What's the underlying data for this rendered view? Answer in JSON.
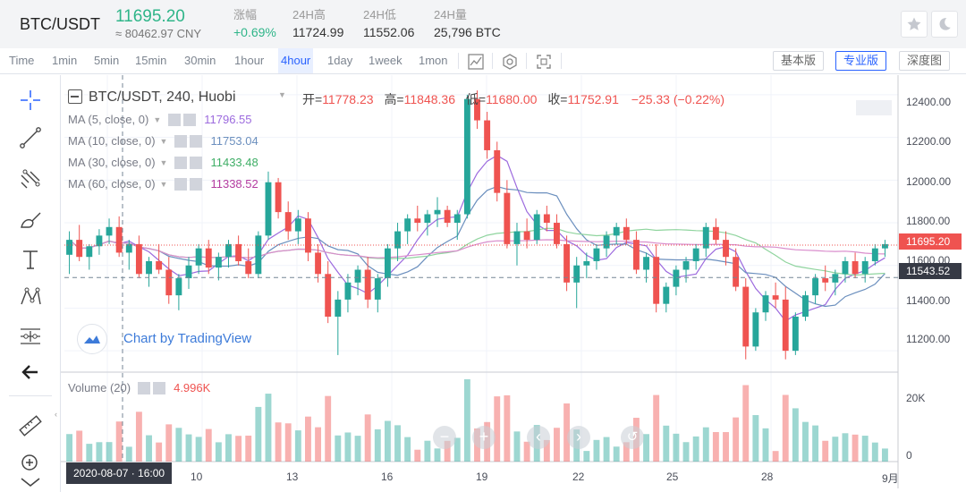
{
  "header": {
    "pair": "BTC/USDT",
    "last_price": "11695.20",
    "cny_price": "≈ 80462.97 CNY",
    "stats": [
      {
        "label": "涨幅",
        "value": "+0.69%"
      },
      {
        "label": "24H高",
        "value": "11724.99"
      },
      {
        "label": "24H低",
        "value": "11552.06"
      },
      {
        "label": "24H量",
        "value": "25,796 BTC"
      }
    ]
  },
  "toolbar": {
    "timeframes": [
      "Time",
      "1min",
      "5min",
      "15min",
      "30min",
      "1hour",
      "4hour",
      "1day",
      "1week",
      "1mon"
    ],
    "active_timeframe": "4hour",
    "views": [
      "基本版",
      "专业版",
      "深度图"
    ],
    "active_view": "专业版"
  },
  "left_tools": [
    "crosshair-icon",
    "trend-line-icon",
    "pitchfork-icon",
    "brush-icon",
    "text-icon",
    "pattern-icon",
    "measure-icon",
    "back-arrow-icon",
    "ruler-icon",
    "zoom-in-icon"
  ],
  "legend": {
    "symbol": "BTC/USDT, 240, Huobi",
    "open_label": "开=",
    "open": "11778.23",
    "high_label": "高=",
    "high": "11848.36",
    "low_label": "低=",
    "low": "11680.00",
    "close_label": "收=",
    "close": "11752.91",
    "change": "−25.33 (−0.22%)",
    "ma": [
      {
        "label": "MA (5, close, 0)",
        "value": "11796.55",
        "color": "#9c6ade"
      },
      {
        "label": "MA (10, close, 0)",
        "value": "11753.04",
        "color": "#6b8fbe"
      },
      {
        "label": "MA (30, close, 0)",
        "value": "11433.48",
        "color": "#3fae66"
      },
      {
        "label": "MA (60, close, 0)",
        "value": "11338.52",
        "color": "#b43ca0"
      }
    ],
    "volume_label": "Volume (20)",
    "volume_value": "4.996K"
  },
  "watermark": "Chart by TradingView",
  "price_axis": [
    "12400.00",
    "12200.00",
    "12000.00",
    "11800.00",
    "11600.00",
    "11400.00",
    "11200.00"
  ],
  "volume_axis": [
    "20K",
    "0"
  ],
  "last_price_tag": "11695.20",
  "crosshair_price_tag": "11543.52",
  "crosshair_time": "2020-08-07 · 16:00",
  "time_axis": [
    "10",
    "13",
    "16",
    "19",
    "22",
    "25",
    "28",
    "9月"
  ],
  "colors": {
    "up": "#26a69a",
    "down": "#ef5350",
    "accent": "#2962ff"
  },
  "chart_data": {
    "type": "candlestick",
    "symbol": "BTC/USDT, 240, Huobi",
    "ylim": [
      11100,
      12450
    ],
    "visible_price_levels": [
      12400,
      12200,
      12000,
      11800,
      11600,
      11400,
      11200
    ],
    "last_price": 11695.2,
    "crosshair_price": 11543.52,
    "crosshair_time": "2020-08-07 16:00",
    "ohlc_sample": [
      [
        11650,
        11760,
        11560,
        11720
      ],
      [
        11720,
        11790,
        11620,
        11640
      ],
      [
        11640,
        11700,
        11580,
        11690
      ],
      [
        11690,
        11770,
        11650,
        11740
      ],
      [
        11740,
        11820,
        11700,
        11780
      ],
      [
        11780,
        11830,
        11640,
        11660
      ],
      [
        11660,
        11720,
        11580,
        11700
      ],
      [
        11700,
        11740,
        11540,
        11560
      ],
      [
        11560,
        11640,
        11500,
        11620
      ],
      [
        11620,
        11700,
        11560,
        11580
      ],
      [
        11580,
        11640,
        11420,
        11460
      ],
      [
        11460,
        11560,
        11390,
        11540
      ],
      [
        11540,
        11640,
        11490,
        11600
      ],
      [
        11600,
        11700,
        11560,
        11680
      ],
      [
        11680,
        11720,
        11560,
        11590
      ],
      [
        11590,
        11660,
        11530,
        11640
      ],
      [
        11640,
        11720,
        11590,
        11700
      ],
      [
        11700,
        11740,
        11600,
        11620
      ],
      [
        11620,
        11680,
        11540,
        11560
      ],
      [
        11560,
        11760,
        11540,
        11740
      ],
      [
        11740,
        12040,
        11720,
        11990
      ],
      [
        11990,
        12010,
        11820,
        11850
      ],
      [
        11850,
        11900,
        11720,
        11760
      ],
      [
        11760,
        11860,
        11700,
        11820
      ],
      [
        11820,
        11850,
        11620,
        11660
      ],
      [
        11660,
        11700,
        11520,
        11560
      ],
      [
        11560,
        11620,
        11330,
        11360
      ],
      [
        11360,
        11480,
        11180,
        11440
      ],
      [
        11440,
        11560,
        11380,
        11520
      ],
      [
        11520,
        11600,
        11460,
        11580
      ],
      [
        11580,
        11640,
        11400,
        11440
      ],
      [
        11440,
        11560,
        11380,
        11540
      ],
      [
        11540,
        11700,
        11500,
        11680
      ],
      [
        11680,
        11800,
        11620,
        11760
      ],
      [
        11760,
        11840,
        11700,
        11820
      ],
      [
        11820,
        11880,
        11760,
        11800
      ],
      [
        11800,
        11860,
        11740,
        11840
      ],
      [
        11840,
        11920,
        11780,
        11860
      ],
      [
        11860,
        11880,
        11780,
        11800
      ],
      [
        11800,
        11860,
        11720,
        11840
      ],
      [
        11840,
        12400,
        11820,
        12380
      ],
      [
        12380,
        12420,
        12240,
        12280
      ],
      [
        12280,
        12320,
        12100,
        12140
      ],
      [
        12140,
        12180,
        11900,
        11940
      ],
      [
        11940,
        12000,
        11680,
        11700
      ],
      [
        11700,
        11800,
        11600,
        11760
      ],
      [
        11760,
        11820,
        11680,
        11720
      ],
      [
        11720,
        11860,
        11700,
        11840
      ],
      [
        11840,
        11880,
        11760,
        11800
      ],
      [
        11800,
        11840,
        11680,
        11700
      ],
      [
        11700,
        11740,
        11480,
        11520
      ],
      [
        11520,
        11640,
        11400,
        11600
      ],
      [
        11600,
        11660,
        11540,
        11620
      ],
      [
        11620,
        11700,
        11580,
        11680
      ],
      [
        11680,
        11760,
        11640,
        11740
      ],
      [
        11740,
        11800,
        11700,
        11780
      ],
      [
        11780,
        11820,
        11700,
        11720
      ],
      [
        11720,
        11760,
        11560,
        11580
      ],
      [
        11580,
        11660,
        11520,
        11640
      ],
      [
        11640,
        11700,
        11380,
        11420
      ],
      [
        11420,
        11520,
        11380,
        11500
      ],
      [
        11500,
        11600,
        11460,
        11580
      ],
      [
        11580,
        11640,
        11520,
        11620
      ],
      [
        11620,
        11700,
        11580,
        11680
      ],
      [
        11680,
        11800,
        11640,
        11780
      ],
      [
        11780,
        11820,
        11700,
        11720
      ],
      [
        11720,
        11760,
        11600,
        11640
      ],
      [
        11640,
        11680,
        11480,
        11500
      ],
      [
        11500,
        11540,
        11160,
        11220
      ],
      [
        11220,
        11400,
        11200,
        11380
      ],
      [
        11380,
        11480,
        11340,
        11460
      ],
      [
        11460,
        11520,
        11400,
        11440
      ],
      [
        11440,
        11500,
        11160,
        11200
      ],
      [
        11200,
        11380,
        11180,
        11360
      ],
      [
        11360,
        11480,
        11340,
        11460
      ],
      [
        11460,
        11560,
        11420,
        11540
      ],
      [
        11540,
        11600,
        11480,
        11520
      ],
      [
        11520,
        11580,
        11460,
        11560
      ],
      [
        11560,
        11640,
        11520,
        11620
      ],
      [
        11620,
        11660,
        11540,
        11560
      ],
      [
        11560,
        11640,
        11520,
        11620
      ],
      [
        11620,
        11700,
        11600,
        11680
      ],
      [
        11680,
        11720,
        11640,
        11700
      ]
    ],
    "volume_ylim": [
      0,
      25000
    ]
  }
}
